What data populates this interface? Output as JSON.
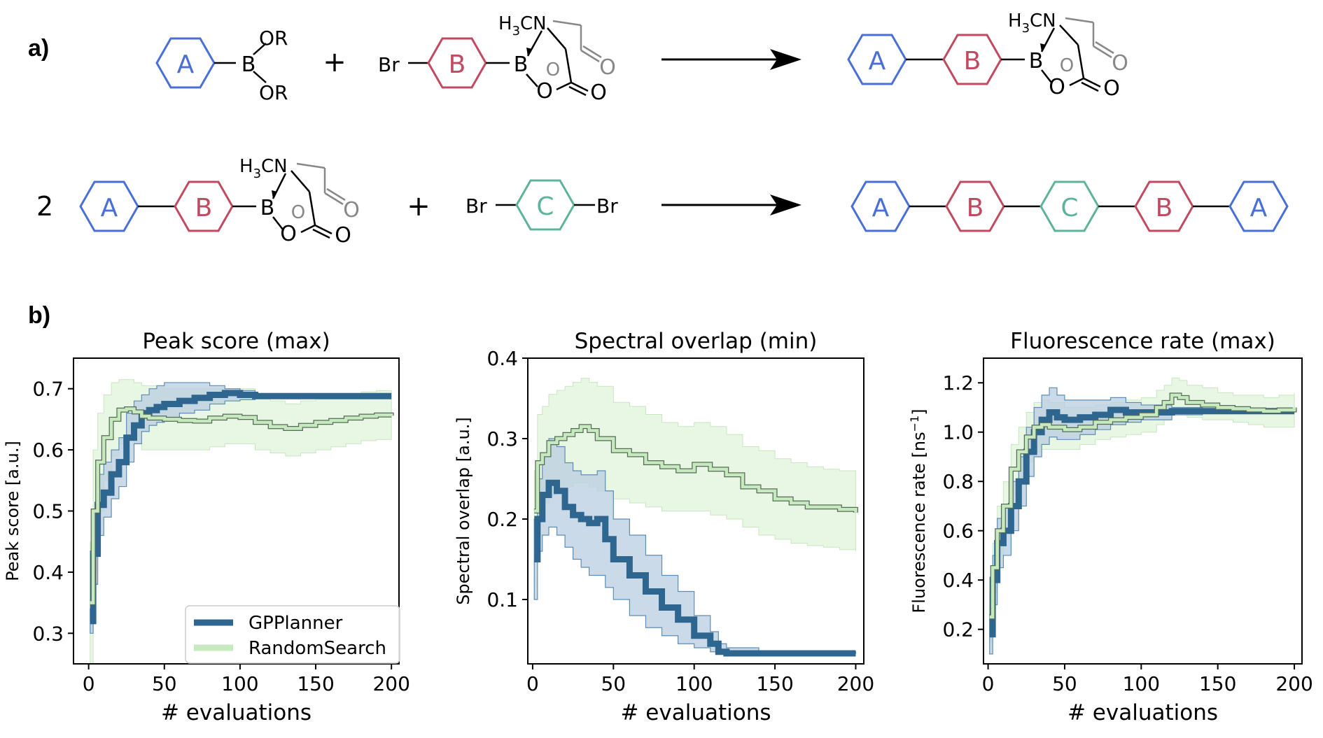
{
  "panel_labels": {
    "a": "a)",
    "b": "b)"
  },
  "colors": {
    "A": "#4a6fd6",
    "B": "#c04a60",
    "C": "#5fb39b",
    "gp": "#2e6690",
    "gp_band": "#b9cde0",
    "rs": "#c7e9c0",
    "rs_edge": "#556b55",
    "rs_band": "#e4f5df"
  },
  "scheme": {
    "ring_labels": {
      "A": "A",
      "B": "B",
      "C": "C"
    },
    "atoms": {
      "boron": "B",
      "oxygen": "O",
      "or": "OR",
      "bromine": "Br",
      "nitrogen": "N",
      "ch3_h": "H",
      "ch3_sub": "3",
      "ch3_c": "C"
    },
    "plus": "+",
    "coefficient": "2"
  },
  "chart_data": [
    {
      "type": "line",
      "title": "Peak score (max)",
      "xlabel": "# evaluations",
      "ylabel": "Peak score [a.u.]",
      "xlim": [
        -10,
        205
      ],
      "ylim": [
        0.25,
        0.75
      ],
      "xticks": [
        0,
        50,
        100,
        150,
        200
      ],
      "yticks": [
        0.3,
        0.4,
        0.5,
        0.6,
        0.7
      ],
      "xtick_labels": [
        "0",
        "50",
        "100",
        "150",
        "200"
      ],
      "ytick_labels": [
        "0.3",
        "0.4",
        "0.5",
        "0.6",
        "0.7"
      ],
      "legend": {
        "position": "lower-right",
        "entries": [
          "GPPlanner",
          "RandomSearch"
        ]
      },
      "series": [
        {
          "name": "GPPlanner",
          "x": [
            1,
            3,
            6,
            10,
            15,
            20,
            25,
            30,
            35,
            40,
            45,
            50,
            60,
            70,
            80,
            90,
            100,
            110,
            120,
            140,
            160,
            180,
            200
          ],
          "y": [
            0.32,
            0.43,
            0.51,
            0.53,
            0.56,
            0.58,
            0.62,
            0.64,
            0.66,
            0.665,
            0.67,
            0.675,
            0.68,
            0.685,
            0.69,
            0.693,
            0.69,
            0.688,
            0.688,
            0.688,
            0.688,
            0.688,
            0.688
          ],
          "lower": [
            0.3,
            0.38,
            0.46,
            0.49,
            0.52,
            0.54,
            0.58,
            0.61,
            0.63,
            0.64,
            0.645,
            0.65,
            0.66,
            0.665,
            0.675,
            0.68,
            0.682,
            0.685,
            0.687,
            0.688,
            0.688,
            0.688,
            0.688
          ],
          "upper": [
            0.34,
            0.48,
            0.56,
            0.58,
            0.6,
            0.62,
            0.66,
            0.68,
            0.69,
            0.7,
            0.705,
            0.71,
            0.71,
            0.71,
            0.705,
            0.7,
            0.697,
            0.692,
            0.69,
            0.688,
            0.688,
            0.688,
            0.688
          ]
        },
        {
          "name": "RandomSearch",
          "x": [
            1,
            3,
            6,
            10,
            15,
            20,
            25,
            30,
            35,
            40,
            50,
            60,
            70,
            80,
            90,
            100,
            110,
            120,
            130,
            140,
            150,
            160,
            170,
            180,
            190,
            200
          ],
          "y": [
            0.35,
            0.5,
            0.58,
            0.62,
            0.65,
            0.665,
            0.667,
            0.662,
            0.655,
            0.652,
            0.65,
            0.648,
            0.647,
            0.652,
            0.655,
            0.653,
            0.645,
            0.638,
            0.635,
            0.64,
            0.645,
            0.648,
            0.652,
            0.655,
            0.657,
            0.656
          ],
          "lower": [
            0.25,
            0.4,
            0.5,
            0.55,
            0.59,
            0.61,
            0.615,
            0.61,
            0.6,
            0.6,
            0.6,
            0.6,
            0.6,
            0.605,
            0.61,
            0.61,
            0.6,
            0.595,
            0.59,
            0.595,
            0.6,
            0.605,
            0.61,
            0.615,
            0.617,
            0.617
          ],
          "upper": [
            0.45,
            0.6,
            0.66,
            0.69,
            0.71,
            0.715,
            0.715,
            0.71,
            0.705,
            0.705,
            0.7,
            0.7,
            0.7,
            0.7,
            0.7,
            0.7,
            0.69,
            0.68,
            0.675,
            0.68,
            0.685,
            0.69,
            0.69,
            0.695,
            0.697,
            0.695
          ]
        }
      ]
    },
    {
      "type": "line",
      "title": "Spectral overlap (min)",
      "xlabel": "# evaluations",
      "ylabel": "Spectral overlap [a.u.]",
      "xlim": [
        -3,
        205
      ],
      "ylim": [
        0.02,
        0.4
      ],
      "xticks": [
        0,
        50,
        100,
        150,
        200
      ],
      "yticks": [
        0.1,
        0.2,
        0.3,
        0.4
      ],
      "xtick_labels": [
        "0",
        "50",
        "100",
        "150",
        "200"
      ],
      "ytick_labels": [
        "0.1",
        "0.2",
        "0.3",
        "0.4"
      ],
      "series": [
        {
          "name": "GPPlanner",
          "x": [
            1,
            3,
            6,
            10,
            15,
            20,
            25,
            30,
            35,
            40,
            45,
            50,
            60,
            70,
            80,
            90,
            100,
            110,
            115,
            120,
            140,
            160,
            180,
            200
          ],
          "y": [
            0.15,
            0.2,
            0.23,
            0.245,
            0.235,
            0.215,
            0.205,
            0.2,
            0.195,
            0.2,
            0.175,
            0.15,
            0.13,
            0.11,
            0.09,
            0.075,
            0.055,
            0.045,
            0.035,
            0.033,
            0.033,
            0.033,
            0.033,
            0.033
          ],
          "lower": [
            0.1,
            0.16,
            0.18,
            0.19,
            0.18,
            0.165,
            0.15,
            0.14,
            0.13,
            0.13,
            0.115,
            0.1,
            0.08,
            0.065,
            0.055,
            0.045,
            0.04,
            0.035,
            0.033,
            0.033,
            0.033,
            0.033,
            0.033,
            0.033
          ],
          "upper": [
            0.2,
            0.25,
            0.28,
            0.3,
            0.29,
            0.27,
            0.26,
            0.255,
            0.255,
            0.26,
            0.235,
            0.2,
            0.18,
            0.155,
            0.13,
            0.11,
            0.08,
            0.06,
            0.045,
            0.04,
            0.035,
            0.035,
            0.035,
            0.035
          ]
        },
        {
          "name": "RandomSearch",
          "x": [
            1,
            3,
            6,
            10,
            15,
            20,
            25,
            30,
            35,
            40,
            50,
            60,
            70,
            80,
            90,
            100,
            110,
            120,
            130,
            140,
            150,
            160,
            170,
            180,
            190,
            200
          ],
          "y": [
            0.21,
            0.27,
            0.28,
            0.295,
            0.3,
            0.305,
            0.31,
            0.315,
            0.31,
            0.3,
            0.285,
            0.28,
            0.27,
            0.265,
            0.26,
            0.268,
            0.262,
            0.255,
            0.24,
            0.235,
            0.225,
            0.22,
            0.215,
            0.215,
            0.212,
            0.208
          ],
          "lower": [
            0.16,
            0.21,
            0.22,
            0.23,
            0.235,
            0.24,
            0.245,
            0.245,
            0.24,
            0.235,
            0.225,
            0.22,
            0.215,
            0.21,
            0.21,
            0.21,
            0.205,
            0.2,
            0.19,
            0.18,
            0.175,
            0.17,
            0.167,
            0.165,
            0.162,
            0.16
          ],
          "upper": [
            0.26,
            0.33,
            0.34,
            0.355,
            0.36,
            0.365,
            0.37,
            0.375,
            0.37,
            0.365,
            0.345,
            0.34,
            0.33,
            0.32,
            0.315,
            0.32,
            0.315,
            0.305,
            0.29,
            0.285,
            0.275,
            0.27,
            0.265,
            0.262,
            0.26,
            0.255
          ]
        }
      ]
    },
    {
      "type": "line",
      "title": "Fluorescence rate (max)",
      "xlabel": "# evaluations",
      "ylabel": "Fluorescence rate [ns",
      "ylabel_sup": "−1",
      "ylabel_close": "]",
      "xlim": [
        -3,
        205
      ],
      "ylim": [
        0.06,
        1.3
      ],
      "xticks": [
        0,
        50,
        100,
        150,
        200
      ],
      "yticks": [
        0.2,
        0.4,
        0.6,
        0.8,
        1.0,
        1.2
      ],
      "xtick_labels": [
        "0",
        "50",
        "100",
        "150",
        "200"
      ],
      "ytick_labels": [
        "0.2",
        "0.4",
        "0.6",
        "0.8",
        "1.0",
        "1.2"
      ],
      "series": [
        {
          "name": "GPPlanner",
          "x": [
            1,
            3,
            6,
            10,
            15,
            20,
            25,
            30,
            35,
            40,
            45,
            50,
            60,
            70,
            80,
            90,
            100,
            120,
            140,
            160,
            180,
            200
          ],
          "y": [
            0.18,
            0.4,
            0.55,
            0.6,
            0.7,
            0.8,
            0.92,
            1.0,
            1.05,
            1.08,
            1.06,
            1.05,
            1.06,
            1.07,
            1.09,
            1.08,
            1.08,
            1.085,
            1.085,
            1.085,
            1.085,
            1.085
          ],
          "lower": [
            0.1,
            0.3,
            0.45,
            0.5,
            0.6,
            0.7,
            0.82,
            0.9,
            0.95,
            0.98,
            0.97,
            0.97,
            0.99,
            1.01,
            1.03,
            1.04,
            1.05,
            1.07,
            1.08,
            1.085,
            1.085,
            1.085
          ],
          "upper": [
            0.26,
            0.5,
            0.65,
            0.7,
            0.8,
            0.9,
            1.02,
            1.1,
            1.15,
            1.18,
            1.15,
            1.13,
            1.13,
            1.13,
            1.14,
            1.12,
            1.11,
            1.1,
            1.09,
            1.085,
            1.085,
            1.085
          ]
        },
        {
          "name": "RandomSearch",
          "x": [
            1,
            3,
            6,
            10,
            15,
            20,
            25,
            30,
            35,
            40,
            50,
            60,
            70,
            80,
            90,
            100,
            110,
            115,
            120,
            125,
            130,
            140,
            150,
            160,
            170,
            180,
            190,
            200
          ],
          "y": [
            0.25,
            0.45,
            0.6,
            0.7,
            0.85,
            0.92,
            0.98,
            1.02,
            1.03,
            1.02,
            1.01,
            1.02,
            1.04,
            1.05,
            1.06,
            1.07,
            1.1,
            1.12,
            1.15,
            1.14,
            1.12,
            1.11,
            1.1,
            1.095,
            1.09,
            1.085,
            1.09,
            1.1
          ],
          "lower": [
            0.15,
            0.35,
            0.5,
            0.6,
            0.75,
            0.82,
            0.88,
            0.92,
            0.93,
            0.93,
            0.93,
            0.95,
            0.97,
            0.98,
            0.99,
            1.0,
            1.03,
            1.05,
            1.07,
            1.07,
            1.06,
            1.05,
            1.05,
            1.04,
            1.03,
            1.02,
            1.02,
            1.03
          ],
          "upper": [
            0.35,
            0.55,
            0.7,
            0.8,
            0.95,
            1.02,
            1.08,
            1.12,
            1.13,
            1.12,
            1.1,
            1.1,
            1.11,
            1.12,
            1.13,
            1.14,
            1.17,
            1.19,
            1.22,
            1.21,
            1.19,
            1.18,
            1.16,
            1.15,
            1.15,
            1.14,
            1.15,
            1.16
          ]
        }
      ]
    }
  ]
}
